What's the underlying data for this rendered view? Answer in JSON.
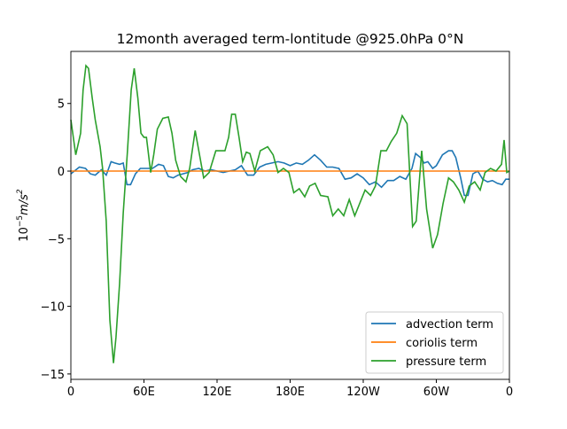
{
  "chart_data": {
    "type": "line",
    "title": "12month averaged term-lontitude @925.0hPa 0°N",
    "ylabel": [
      "10",
      "−5",
      "m/s",
      "2"
    ],
    "xlim": [
      0,
      360
    ],
    "ylim": [
      -15.4,
      8.85
    ],
    "xticks": [
      0,
      {
        "value": 60,
        "label": "60E"
      },
      {
        "value": 120,
        "label": "120E"
      },
      {
        "value": 180,
        "label": "180E"
      },
      {
        "value": 240,
        "label": "120W"
      },
      {
        "value": 300,
        "label": "60W"
      },
      {
        "value": 360,
        "label": "0"
      }
    ],
    "yticks": [
      {
        "value": -15,
        "label": "−15"
      },
      {
        "value": -10,
        "label": "−10"
      },
      {
        "value": -5,
        "label": "−5"
      },
      0,
      5
    ],
    "grid": false,
    "legend": "lower right",
    "series": [
      {
        "name": "advection term",
        "color": "#1f77b4",
        "x": [
          0,
          7,
          12,
          16,
          20,
          25,
          29,
          33,
          36,
          40,
          43,
          46,
          49,
          53,
          57,
          62,
          67,
          72,
          76,
          80,
          84,
          88,
          92,
          96,
          100,
          105,
          110,
          115,
          120,
          125,
          130,
          135,
          140,
          145,
          150,
          155,
          160,
          165,
          170,
          175,
          180,
          185,
          190,
          195,
          200,
          205,
          210,
          215,
          220,
          225,
          230,
          235,
          240,
          245,
          250,
          255,
          260,
          265,
          270,
          275,
          280,
          283,
          287,
          290,
          293,
          297,
          300,
          305,
          310,
          313,
          316,
          320,
          323,
          326,
          330,
          334,
          338,
          342,
          346,
          350,
          354,
          357,
          360
        ],
        "values": [
          -0.2,
          0.3,
          0.2,
          -0.2,
          -0.3,
          0.1,
          -0.3,
          0.7,
          0.6,
          0.5,
          0.6,
          -1.0,
          -1.0,
          -0.2,
          0.2,
          0.2,
          0.2,
          0.5,
          0.4,
          -0.4,
          -0.5,
          -0.3,
          -0.2,
          -0.1,
          0.1,
          0.2,
          0,
          0.1,
          0,
          -0.1,
          0,
          0.1,
          0.4,
          -0.3,
          -0.3,
          0.3,
          0.5,
          0.6,
          0.7,
          0.6,
          0.4,
          0.6,
          0.5,
          0.8,
          1.2,
          0.8,
          0.3,
          0.3,
          0.2,
          -0.6,
          -0.5,
          -0.2,
          -0.5,
          -1.0,
          -0.8,
          -1.2,
          -0.7,
          -0.7,
          -0.4,
          -0.6,
          0.2,
          1.3,
          1.0,
          0.6,
          0.7,
          0.2,
          0.4,
          1.2,
          1.5,
          1.5,
          1.0,
          -0.5,
          -1.8,
          -1.8,
          -0.2,
          0,
          -0.6,
          -0.8,
          -0.7,
          -0.9,
          -1.0,
          -0.6,
          -0.6
        ]
      },
      {
        "name": "coriolis term",
        "color": "#ff7f0e",
        "x": [
          0,
          90,
          180,
          270,
          360
        ],
        "values": [
          0,
          0,
          0,
          0,
          0
        ]
      },
      {
        "name": "pressure term",
        "color": "#2ca02c",
        "x": [
          0,
          4,
          8,
          10,
          12.4,
          14.5,
          17.5,
          20,
          24,
          26,
          29,
          32,
          35,
          37,
          40,
          43,
          46.5,
          49.5,
          52,
          55,
          57.5,
          60,
          62,
          65.5,
          68,
          71,
          75.5,
          80,
          83,
          86,
          90,
          94.5,
          97.5,
          102,
          105,
          109,
          113.5,
          119,
          123.5,
          126.5,
          129.5,
          132,
          135,
          138,
          141,
          144,
          147,
          151,
          155.5,
          161.5,
          166,
          170,
          174.5,
          179,
          183,
          187.5,
          192,
          196,
          200.5,
          205,
          211,
          215,
          219.5,
          224,
          228.5,
          233,
          237.5,
          241.5,
          246,
          250,
          254.5,
          259,
          263,
          267.5,
          272,
          276,
          280.5,
          283.5,
          288,
          292,
          297,
          301,
          305.5,
          310,
          314,
          318.5,
          323,
          327,
          331.5,
          336,
          340,
          344.5,
          349,
          353.5,
          355.6,
          357.8,
          360
        ],
        "values": [
          3.8,
          1.2,
          2.8,
          6,
          7.8,
          7.6,
          5.4,
          3.8,
          1.8,
          0.2,
          -3.7,
          -11,
          -14.2,
          -12.3,
          -8.3,
          -3.1,
          1.5,
          6,
          7.6,
          5.4,
          2.8,
          2.5,
          2.5,
          -0.1,
          1.2,
          3.1,
          3.9,
          4,
          2.8,
          0.8,
          -0.4,
          -0.8,
          0.2,
          3,
          1.5,
          -0.5,
          -0.1,
          1.5,
          1.5,
          1.5,
          2.5,
          4.2,
          4.2,
          2.5,
          0.7,
          1.4,
          1.3,
          0,
          1.5,
          1.8,
          1.2,
          -0.1,
          0.2,
          -0.1,
          -1.6,
          -1.3,
          -1.9,
          -1.1,
          -0.9,
          -1.8,
          -1.9,
          -3.3,
          -2.8,
          -3.3,
          -2.1,
          -3.3,
          -2.3,
          -1.4,
          -1.8,
          -1.1,
          1.5,
          1.5,
          2.2,
          2.8,
          4.1,
          3.5,
          -4.1,
          -3.7,
          1.5,
          -2.8,
          -5.7,
          -4.7,
          -2.4,
          -0.5,
          -0.8,
          -1.4,
          -2.3,
          -1.1,
          -0.8,
          -1.4,
          -0.1,
          0.2,
          0,
          0.5,
          2.3,
          -0.1,
          0
        ]
      }
    ]
  }
}
